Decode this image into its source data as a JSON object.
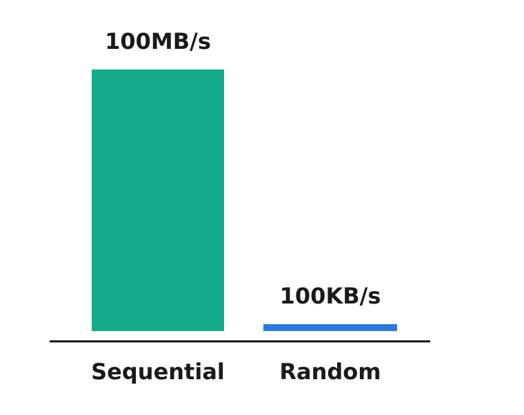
{
  "chart_data": {
    "type": "bar",
    "title": "",
    "xlabel": "",
    "ylabel": "",
    "categories": [
      "Sequential",
      "Random"
    ],
    "values": [
      100,
      0.1
    ],
    "unit": "MB/s",
    "data_labels": [
      "100MB/s",
      "100KB/s"
    ],
    "colors": [
      "#14ac8a",
      "#2a7ae0"
    ],
    "ylim": [
      0,
      100
    ],
    "grid": false,
    "legend": "none"
  }
}
